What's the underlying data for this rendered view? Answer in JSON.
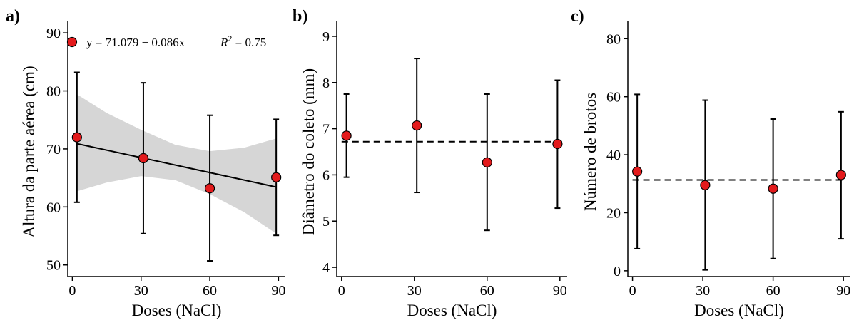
{
  "chart_data": [
    {
      "type": "scatter",
      "panel_label": "a)",
      "xlabel": "Doses (NaCl)",
      "ylabel": "Altura da parte aérea (cm)",
      "xlim": [
        -2,
        93
      ],
      "ylim": [
        48,
        91
      ],
      "xticks": [
        0,
        30,
        60,
        90
      ],
      "yticks": [
        50,
        60,
        70,
        80,
        90
      ],
      "points": [
        {
          "x": 2,
          "y": 72.0,
          "lo": 60.8,
          "hi": 83.2
        },
        {
          "x": 31,
          "y": 68.4,
          "lo": 55.4,
          "hi": 81.4
        },
        {
          "x": 60,
          "y": 63.2,
          "lo": 50.7,
          "hi": 75.8
        },
        {
          "x": 89,
          "y": 65.1,
          "lo": 55.1,
          "hi": 75.1
        }
      ],
      "regression": {
        "intercept": 71.079,
        "slope": -0.086,
        "x_range": [
          2,
          89
        ],
        "style": "solid"
      },
      "confidence_band": [
        {
          "x": 2,
          "lo": 62.7,
          "hi": 79.4
        },
        {
          "x": 15,
          "lo": 64.2,
          "hi": 76.2
        },
        {
          "x": 30,
          "lo": 65.3,
          "hi": 73.3
        },
        {
          "x": 45,
          "lo": 64.6,
          "hi": 70.7
        },
        {
          "x": 60,
          "lo": 62.2,
          "hi": 69.6
        },
        {
          "x": 75,
          "lo": 59.1,
          "hi": 70.2
        },
        {
          "x": 89,
          "lo": 55.4,
          "hi": 71.8
        }
      ],
      "equation_text": "y = 71.079 − 0.086x",
      "r2_label": "R",
      "r2_sup": "2",
      "r2_value": " = 0.75",
      "legend_position": "top-left",
      "point_color": "#e31a1c",
      "band_color": "#d6d6d6"
    },
    {
      "type": "scatter",
      "panel_label": "b)",
      "xlabel": "Doses (NaCl)",
      "ylabel": "Diâmetro do coleto (mm)",
      "xlim": [
        -2,
        93
      ],
      "ylim": [
        3.8,
        9.2
      ],
      "xticks": [
        0,
        30,
        60,
        90
      ],
      "yticks": [
        4,
        5,
        6,
        7,
        8,
        9
      ],
      "points": [
        {
          "x": 2,
          "y": 6.85,
          "lo": 5.95,
          "hi": 7.75
        },
        {
          "x": 31,
          "y": 7.07,
          "lo": 5.62,
          "hi": 8.52
        },
        {
          "x": 60,
          "y": 6.27,
          "lo": 4.8,
          "hi": 7.75
        },
        {
          "x": 89,
          "y": 6.67,
          "lo": 5.28,
          "hi": 8.05
        }
      ],
      "mean_line": {
        "y": 6.72,
        "style": "dashed"
      },
      "point_color": "#e31a1c"
    },
    {
      "type": "scatter",
      "panel_label": "c)",
      "xlabel": "Doses (NaCl)",
      "ylabel": "Número de brotos",
      "xlim": [
        -2,
        93
      ],
      "ylim": [
        -2,
        84
      ],
      "xticks": [
        0,
        30,
        60,
        90
      ],
      "yticks": [
        0,
        20,
        40,
        60,
        80
      ],
      "points": [
        {
          "x": 2,
          "y": 34.2,
          "lo": 7.6,
          "hi": 60.8
        },
        {
          "x": 31,
          "y": 29.5,
          "lo": 0.3,
          "hi": 58.8
        },
        {
          "x": 60,
          "y": 28.3,
          "lo": 4.2,
          "hi": 52.3
        },
        {
          "x": 89,
          "y": 33.0,
          "lo": 11.0,
          "hi": 54.8
        }
      ],
      "mean_line": {
        "y": 31.3,
        "style": "dashed"
      },
      "point_color": "#e31a1c"
    }
  ]
}
